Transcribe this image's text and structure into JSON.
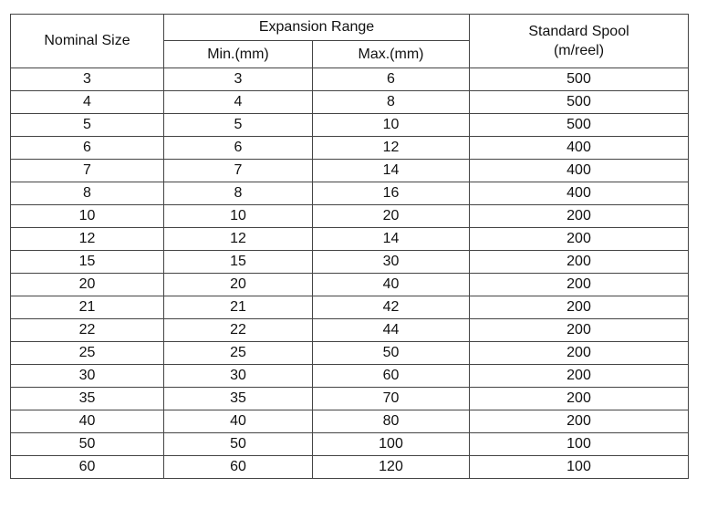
{
  "table": {
    "headers": {
      "nominal_size": "Nominal Size",
      "expansion_range": "Expansion Range",
      "min": "Min.(mm)",
      "max": "Max.(mm)",
      "standard_spool_line1": "Standard Spool",
      "standard_spool_line2": "(m/reel)"
    },
    "rows": [
      [
        "3",
        "3",
        "6",
        "500"
      ],
      [
        "4",
        "4",
        "8",
        "500"
      ],
      [
        "5",
        "5",
        "10",
        "500"
      ],
      [
        "6",
        "6",
        "12",
        "400"
      ],
      [
        "7",
        "7",
        "14",
        "400"
      ],
      [
        "8",
        "8",
        "16",
        "400"
      ],
      [
        "10",
        "10",
        "20",
        "200"
      ],
      [
        "12",
        "12",
        "14",
        "200"
      ],
      [
        "15",
        "15",
        "30",
        "200"
      ],
      [
        "20",
        "20",
        "40",
        "200"
      ],
      [
        "21",
        "21",
        "42",
        "200"
      ],
      [
        "22",
        "22",
        "44",
        "200"
      ],
      [
        "25",
        "25",
        "50",
        "200"
      ],
      [
        "30",
        "30",
        "60",
        "200"
      ],
      [
        "35",
        "35",
        "70",
        "200"
      ],
      [
        "40",
        "40",
        "80",
        "200"
      ],
      [
        "50",
        "50",
        "100",
        "100"
      ],
      [
        "60",
        "60",
        "120",
        "100"
      ]
    ]
  }
}
